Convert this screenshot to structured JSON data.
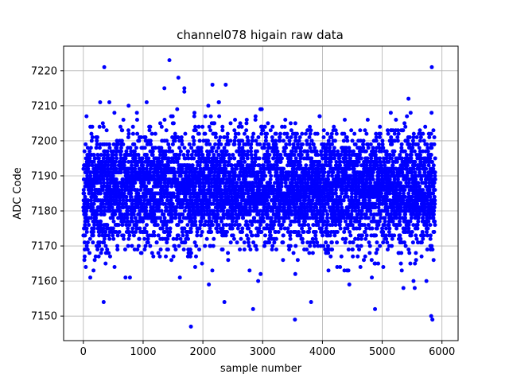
{
  "chart_data": {
    "type": "scatter",
    "title": "channel078 higain raw data",
    "xlabel": "sample number",
    "ylabel": "ADC Code",
    "xlim": [
      -330,
      6270
    ],
    "ylim": [
      7143,
      7227
    ],
    "xticks": [
      0,
      1000,
      2000,
      3000,
      4000,
      5000,
      6000
    ],
    "yticks": [
      7150,
      7160,
      7170,
      7180,
      7190,
      7200,
      7210,
      7220
    ],
    "grid": true,
    "marker_color": "#0000ff",
    "n_points": 5888,
    "value_range": [
      7147,
      7223
    ],
    "bulk_range": [
      7170,
      7202
    ],
    "bulk_center": 7186,
    "notable_points": [
      {
        "x": 350,
        "y": 7221
      },
      {
        "x": 1440,
        "y": 7223
      },
      {
        "x": 1590,
        "y": 7218
      },
      {
        "x": 1690,
        "y": 7215
      },
      {
        "x": 2160,
        "y": 7216
      },
      {
        "x": 1800,
        "y": 7147
      },
      {
        "x": 3540,
        "y": 7149
      },
      {
        "x": 5830,
        "y": 7221
      },
      {
        "x": 5840,
        "y": 7149
      },
      {
        "x": 5820,
        "y": 7150
      },
      {
        "x": 4880,
        "y": 7152
      },
      {
        "x": 2840,
        "y": 7152
      },
      {
        "x": 3810,
        "y": 7154
      },
      {
        "x": 340,
        "y": 7154
      },
      {
        "x": 2360,
        "y": 7154
      }
    ]
  }
}
